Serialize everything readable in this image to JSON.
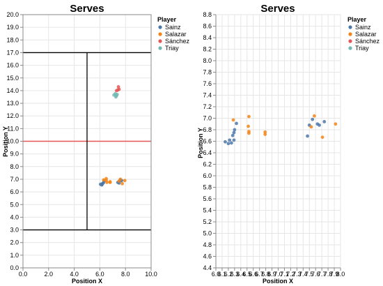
{
  "legend_title": "Player",
  "players": [
    {
      "name": "Sainz",
      "color": "#4c78a8"
    },
    {
      "name": "Salazar",
      "color": "#f58518"
    },
    {
      "name": "Sánchez",
      "color": "#e45756"
    },
    {
      "name": "Triay",
      "color": "#72b7b2"
    }
  ],
  "chart_data": [
    {
      "type": "scatter",
      "title": "Serves",
      "xlabel": "Position X",
      "ylabel": "Position Y",
      "xlim": [
        0,
        10
      ],
      "ylim": [
        0,
        20
      ],
      "x_ticks": [
        "0.0",
        "2.0",
        "4.0",
        "6.0",
        "8.0",
        "10.0"
      ],
      "y_ticks": [
        "0.0",
        "1.0",
        "2.0",
        "3.0",
        "4.0",
        "5.0",
        "6.0",
        "7.0",
        "8.0",
        "9.0",
        "10.0",
        "11.0",
        "12.0",
        "13.0",
        "14.0",
        "15.0",
        "16.0",
        "17.0",
        "18.0",
        "19.0",
        "20.0"
      ],
      "grid": true,
      "legend_position": "top-right",
      "court_lines": {
        "horizontal": [
          {
            "y": 3,
            "color": "#000000"
          },
          {
            "y": 17,
            "color": "#000000"
          },
          {
            "y": 10,
            "color": "#e45756"
          }
        ],
        "vertical": [
          {
            "x": 5,
            "y_from": 3,
            "y_to": 17,
            "color": "#000000"
          }
        ]
      },
      "series": [
        {
          "name": "Sainz",
          "color": "#4c78a8",
          "points": [
            [
              6.05,
              6.6
            ],
            [
              6.15,
              6.55
            ],
            [
              6.2,
              6.65
            ],
            [
              6.28,
              6.72
            ],
            [
              6.32,
              6.85
            ],
            [
              6.18,
              6.6
            ],
            [
              7.5,
              6.7
            ],
            [
              7.55,
              6.85
            ],
            [
              7.6,
              6.95
            ],
            [
              7.7,
              6.9
            ],
            [
              7.4,
              6.75
            ]
          ]
        },
        {
          "name": "Salazar",
          "color": "#f58518",
          "points": [
            [
              6.3,
              6.95
            ],
            [
              6.5,
              6.9
            ],
            [
              6.55,
              6.75
            ],
            [
              6.5,
              7.05
            ],
            [
              6.8,
              6.75
            ],
            [
              6.8,
              6.8
            ],
            [
              7.6,
              7.0
            ],
            [
              7.75,
              6.65
            ],
            [
              7.95,
              6.9
            ],
            [
              7.5,
              6.85
            ]
          ]
        },
        {
          "name": "Sánchez",
          "color": "#e45756",
          "points": [
            [
              7.3,
              14.0
            ],
            [
              7.4,
              14.05
            ],
            [
              7.5,
              14.1
            ],
            [
              7.45,
              14.3
            ]
          ]
        },
        {
          "name": "Triay",
          "color": "#72b7b2",
          "points": [
            [
              7.1,
              13.65
            ],
            [
              7.2,
              13.75
            ],
            [
              7.3,
              13.6
            ],
            [
              7.35,
              13.7
            ],
            [
              7.25,
              13.5
            ]
          ]
        }
      ]
    },
    {
      "type": "scatter",
      "title": "Serves",
      "xlabel": "Position X",
      "ylabel": "Position Y",
      "xlim": [
        6.0,
        8.0
      ],
      "ylim": [
        4.4,
        8.8
      ],
      "x_ticks": [
        "6.0",
        "6.1",
        "6.2",
        "6.3",
        "6.4",
        "6.5",
        "6.6",
        "6.7",
        "6.8",
        "6.9",
        "7.0",
        "7.1",
        "7.2",
        "7.3",
        "7.4",
        "7.5",
        "7.6",
        "7.7",
        "7.8",
        "7.9",
        "8.0"
      ],
      "y_ticks": [
        "4.4",
        "4.6",
        "4.8",
        "5.0",
        "5.2",
        "5.4",
        "5.6",
        "5.8",
        "6.0",
        "6.2",
        "6.4",
        "6.6",
        "6.8",
        "7.0",
        "7.2",
        "7.4",
        "7.6",
        "7.8",
        "8.0",
        "8.2",
        "8.4",
        "8.6",
        "8.8"
      ],
      "grid": true,
      "legend_position": "top-right",
      "series": [
        {
          "name": "Sainz",
          "color": "#4c78a8",
          "points": [
            [
              6.15,
              6.59
            ],
            [
              6.2,
              6.56
            ],
            [
              6.22,
              6.62
            ],
            [
              6.25,
              6.57
            ],
            [
              6.27,
              6.7
            ],
            [
              6.29,
              6.75
            ],
            [
              6.3,
              6.8
            ],
            [
              6.33,
              6.91
            ],
            [
              6.29,
              6.62
            ],
            [
              7.47,
              6.69
            ],
            [
              7.5,
              6.88
            ],
            [
              7.55,
              6.98
            ],
            [
              7.63,
              6.9
            ],
            [
              7.66,
              6.88
            ],
            [
              7.74,
              6.94
            ]
          ]
        },
        {
          "name": "Salazar",
          "color": "#f58518",
          "points": [
            [
              6.28,
              6.97
            ],
            [
              6.53,
              7.03
            ],
            [
              6.52,
              6.86
            ],
            [
              6.53,
              6.77
            ],
            [
              6.53,
              6.74
            ],
            [
              6.79,
              6.76
            ],
            [
              6.79,
              6.72
            ],
            [
              7.58,
              7.04
            ],
            [
              7.53,
              6.85
            ],
            [
              7.71,
              6.67
            ],
            [
              7.92,
              6.9
            ]
          ]
        },
        {
          "name": "Sánchez",
          "color": "#e45756",
          "points": []
        },
        {
          "name": "Triay",
          "color": "#72b7b2",
          "points": []
        }
      ]
    }
  ]
}
